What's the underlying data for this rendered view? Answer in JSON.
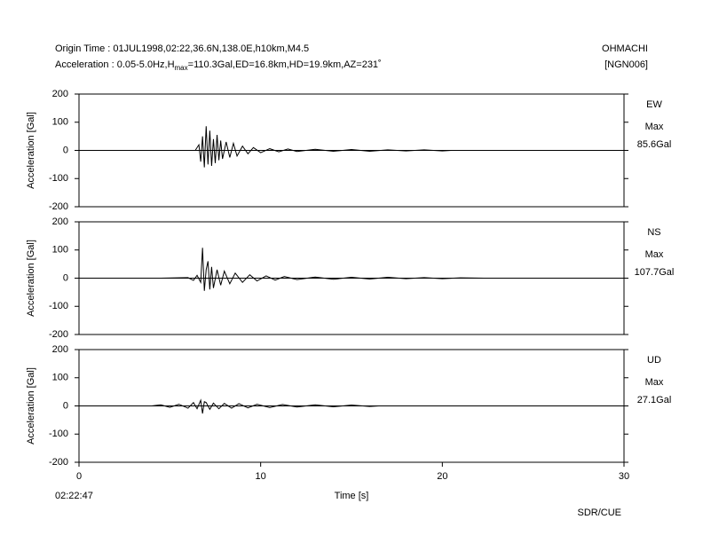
{
  "header": {
    "line1": "Origin Time : 01JUL1998,02:22,36.6N,138.0E,h10km,M4.5",
    "line2_a": "Acceleration : 0.05-5.0Hz,H",
    "line2_sub": "max",
    "line2_b": "=110.3Gal,ED=16.8km,HD=19.9km,AZ=231˚",
    "station": "OHMACHI",
    "code": "[NGN006]",
    "credit": "SDR/CUE"
  },
  "chart_data": [
    {
      "type": "line",
      "ylabel": "Acceleration [Gal]",
      "component": "EW",
      "max_label": "Max",
      "max_text": "85.6Gal",
      "xlim": [
        0,
        30
      ],
      "ylim": [
        -200,
        200
      ],
      "yticks": [
        200,
        100,
        0,
        -100,
        -200
      ],
      "color": "#000000",
      "x": [
        5.0,
        6.4,
        6.6,
        6.7,
        6.8,
        6.9,
        7.0,
        7.1,
        7.2,
        7.3,
        7.4,
        7.5,
        7.6,
        7.7,
        7.8,
        7.9,
        8.1,
        8.3,
        8.5,
        8.7,
        9.0,
        9.3,
        9.6,
        10.0,
        10.5,
        11.0,
        11.5,
        12.0,
        13.0,
        14.0,
        15.0,
        16.0,
        17.0,
        18.0,
        19.0,
        20.0,
        20.5
      ],
      "values": [
        0,
        0,
        20,
        -40,
        50,
        -60,
        85.6,
        -50,
        70,
        -55,
        40,
        -45,
        55,
        -35,
        35,
        -30,
        30,
        -25,
        25,
        -20,
        15,
        -12,
        10,
        -8,
        6,
        -5,
        5,
        -4,
        4,
        -3,
        3,
        -3,
        2,
        -2,
        2,
        -2,
        0
      ]
    },
    {
      "type": "line",
      "ylabel": "Acceleration [Gal]",
      "component": "NS",
      "max_label": "Max",
      "max_text": "107.7Gal",
      "xlim": [
        0,
        30
      ],
      "ylim": [
        -200,
        200
      ],
      "yticks": [
        200,
        100,
        0,
        -100,
        -200
      ],
      "color": "#000000",
      "x": [
        4.5,
        6.0,
        6.3,
        6.5,
        6.7,
        6.8,
        6.9,
        7.0,
        7.1,
        7.2,
        7.3,
        7.4,
        7.6,
        7.8,
        8.0,
        8.3,
        8.6,
        9.0,
        9.4,
        9.8,
        10.3,
        10.8,
        11.3,
        12.0,
        13.0,
        14.0,
        15.0,
        16.0,
        17.0,
        18.0,
        19.0,
        20.0,
        21.0,
        22.3
      ],
      "values": [
        0,
        2,
        -8,
        10,
        -15,
        107.7,
        -45,
        30,
        60,
        -40,
        40,
        -35,
        30,
        -25,
        25,
        -20,
        18,
        -15,
        12,
        -10,
        8,
        -7,
        6,
        -5,
        4,
        -4,
        3,
        -3,
        3,
        -2,
        2,
        -2,
        1,
        0
      ]
    },
    {
      "type": "line",
      "ylabel": "Acceleration [Gal]",
      "component": "UD",
      "max_label": "Max",
      "max_text": "27.1Gal",
      "xlim": [
        0,
        30
      ],
      "ylim": [
        -200,
        200
      ],
      "yticks": [
        200,
        100,
        0,
        -100,
        -200
      ],
      "color": "#000000",
      "xticks": [
        0,
        10,
        20,
        30
      ],
      "xlabel": "Time [s]",
      "x_origin_label": "02:22:47",
      "x": [
        4.0,
        4.5,
        5.0,
        5.5,
        6.0,
        6.3,
        6.5,
        6.7,
        6.8,
        6.9,
        7.0,
        7.2,
        7.4,
        7.7,
        8.0,
        8.4,
        8.8,
        9.3,
        9.8,
        10.5,
        11.2,
        12.0,
        13.0,
        14.0,
        15.0,
        16.0,
        16.5
      ],
      "values": [
        0,
        4,
        -5,
        6,
        -8,
        12,
        -10,
        20,
        -27,
        15,
        12,
        -12,
        10,
        -10,
        9,
        -8,
        8,
        -7,
        6,
        -6,
        5,
        -4,
        4,
        -3,
        3,
        -2,
        0
      ]
    }
  ]
}
